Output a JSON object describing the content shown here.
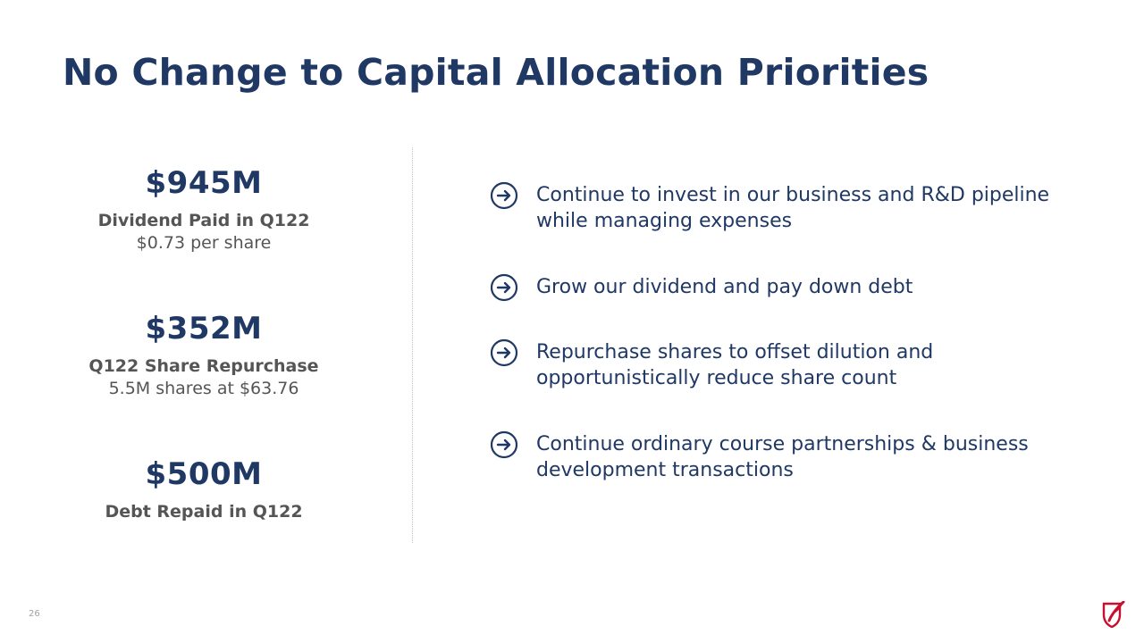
{
  "slide": {
    "title": "No Change to Capital Allocation Priorities",
    "page_number": "26"
  },
  "stats": [
    {
      "value": "$945M",
      "label": "Dividend Paid in Q122",
      "sub": "$0.73 per share"
    },
    {
      "value": "$352M",
      "label": "Q122 Share Repurchase",
      "sub": "5.5M shares at $63.76"
    },
    {
      "value": "$500M",
      "label": "Debt Repaid in Q122",
      "sub": ""
    }
  ],
  "priorities": [
    {
      "line1": "Continue to invest in our business and R&D pipeline",
      "line2": "while managing expenses"
    },
    {
      "line1": "Grow our dividend and pay down debt",
      "line2": ""
    },
    {
      "line1": "Repurchase shares to offset dilution and",
      "line2": "opportunistically reduce share count"
    },
    {
      "line1": "Continue ordinary course partnerships & business",
      "line2": "development transactions"
    }
  ],
  "icons": {
    "bullet": "circled-right-arrow-icon",
    "logo": "company-logo-icon"
  },
  "colors": {
    "title": "#1f3864",
    "stat_text": "#555555",
    "logo_red": "#c8102e"
  }
}
